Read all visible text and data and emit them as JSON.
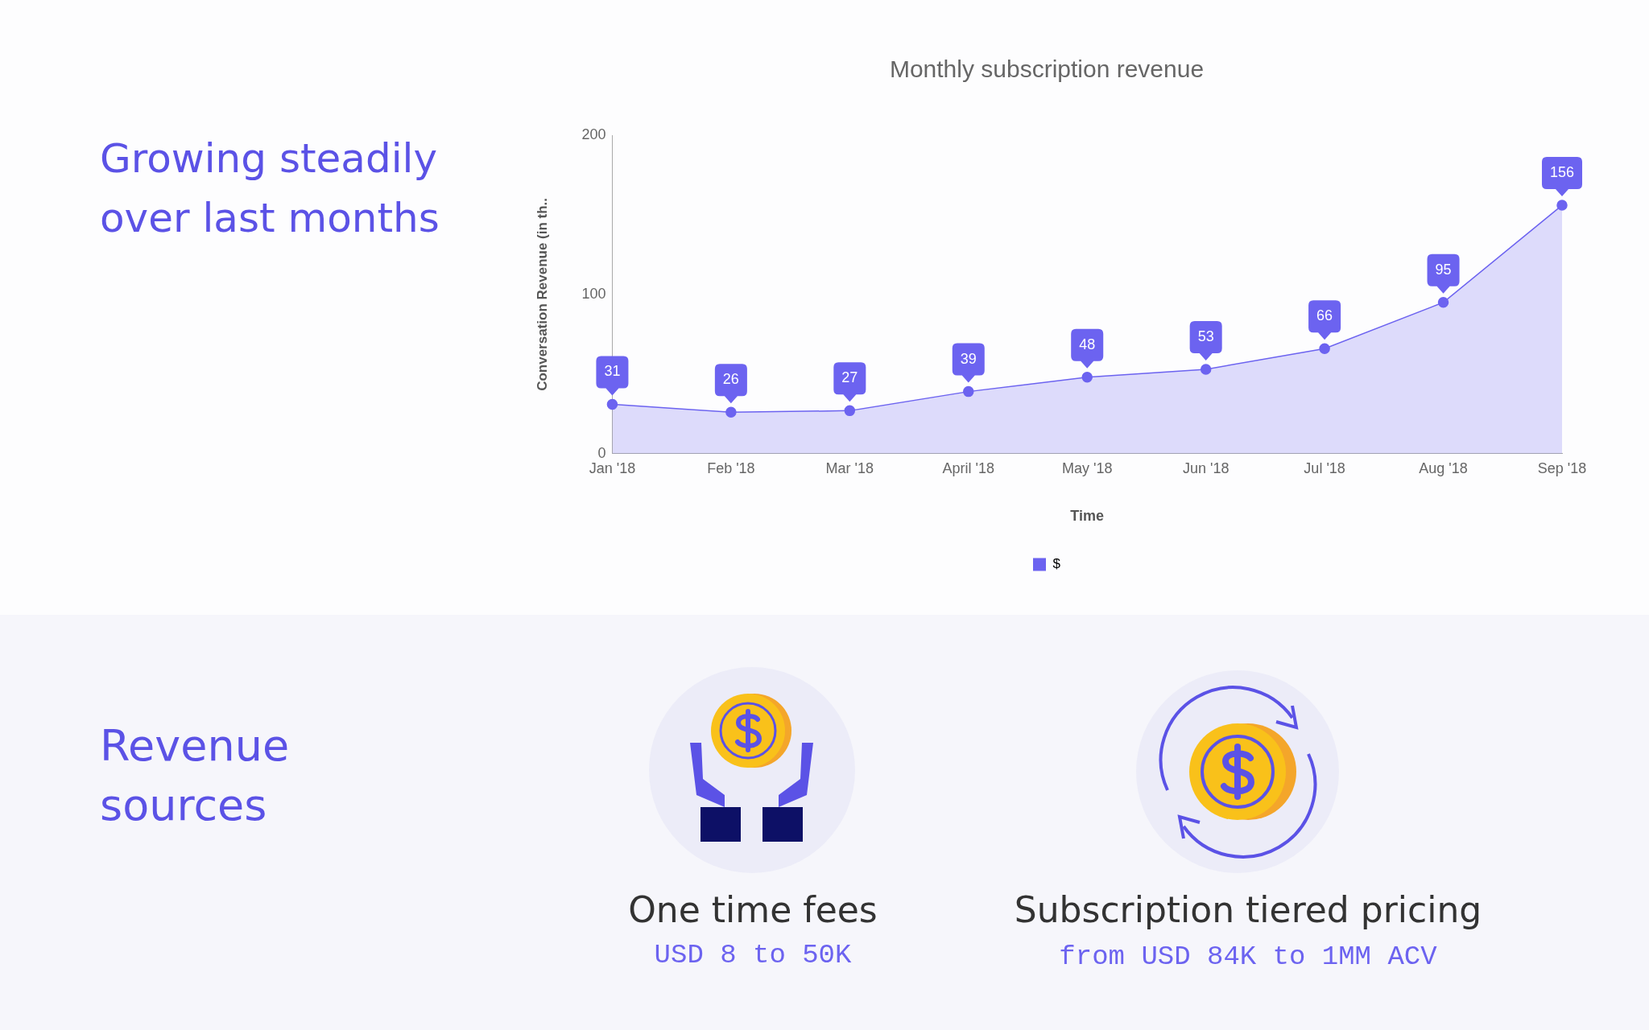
{
  "chart_data": {
    "type": "area",
    "title": "Monthly subscription revenue",
    "xlabel": "Time",
    "ylabel": "Conversation Revenue (in th..",
    "categories": [
      "Jan '18",
      "Feb '18",
      "Mar '18",
      "April '18",
      "May '18",
      "Jun '18",
      "Jul '18",
      "Aug '18",
      "Sep '18"
    ],
    "series": [
      {
        "name": "$",
        "color": "#6c63f0",
        "values": [
          31,
          26,
          27,
          39,
          48,
          53,
          66,
          95,
          156
        ]
      }
    ],
    "ylim": [
      0,
      200
    ],
    "yticks": [
      0,
      100,
      200
    ],
    "grid": false,
    "legend": "bottom",
    "marker": "circle",
    "data_labels": true,
    "annotations": [
      "Growing steadily over last months",
      "Revenue sources",
      "One time fees",
      "USD 8 to 50K",
      "Subscription tiered pricing",
      "from USD 84K to 1MM ACV"
    ]
  }
}
